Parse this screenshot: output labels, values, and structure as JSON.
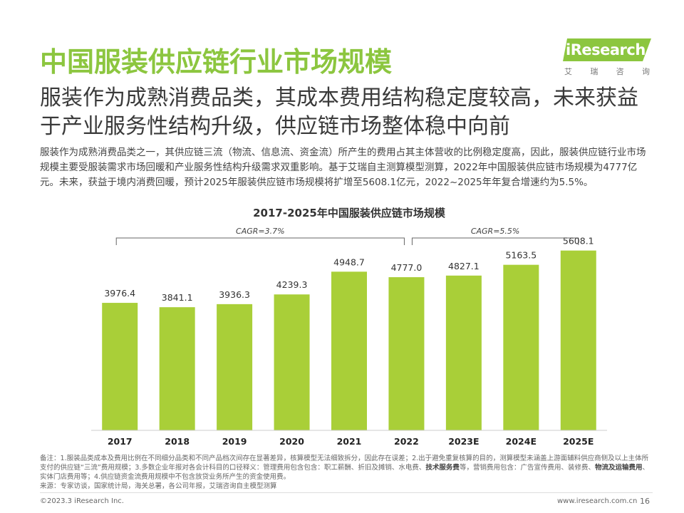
{
  "title": "中国服装供应链行业市场规模",
  "logo": {
    "word": "iResearch",
    "sub": [
      "艾",
      "瑞",
      "咨",
      "询"
    ]
  },
  "subtitle": "服装作为成熟消费品类，其成本费用结构稳定度较高，未来获益于产业服务性结构升级，供应链市场整体稳中向前",
  "description": "服装作为成熟消费品类之一，其供应链三流（物流、信息流、资金流）所产生的费用占其主体营收的比例稳定度高，因此，服装供应链行业市场规模主要受服装需求市场回暖和产业服务性结构升级需求双重影响。基于艾瑞自主测算模型测算，2022年中国服装供应链市场规模为4777亿元。未来，获益于境内消费回暖，预计2025年服装供应链市场规模将扩增至5608.1亿元，2022~2025年年复合增速约为5.5%。",
  "chart_data": {
    "type": "bar",
    "title": "2017-2025年中国服装供应链市场规模",
    "categories": [
      "2017",
      "2018",
      "2019",
      "2020",
      "2021",
      "2022",
      "2023E",
      "2024E",
      "2025E"
    ],
    "values": [
      3976.4,
      3841.1,
      3936.3,
      4239.3,
      4948.7,
      4777.0,
      4827.1,
      5163.5,
      5608.1
    ],
    "value_labels": [
      "3976.4",
      "3841.1",
      "3936.3",
      "4239.3",
      "4948.7",
      "4777.0",
      "4827.1",
      "5163.5",
      "5608.1"
    ],
    "bar_color": "#a9cf38",
    "ylim": [
      0,
      6000
    ],
    "grid": false,
    "annotations": [
      {
        "label": "CAGR=3.7%",
        "from": "2017",
        "to": "2022"
      },
      {
        "label": "CAGR=5.5%",
        "from": "2022",
        "to": "2025E"
      }
    ]
  },
  "notes": {
    "line1": "备注：1.服装品类成本及费用比例在不同细分品类和不同产品档次间存在显著差异，核算模型无法细致拆分，因此存在误差；2.出于避免重复核算的目的，测算模型未涵盖上游面辅料供应商侧及以上主体所支付的供应链“三流”费用规模；3.多数企业年报对各会计科目的口径释义：管理费用包含包含：职工薪酬、折旧及摊销、水电费、",
    "bold1": "技术服务费",
    "line2": "等，营销费用包含：广告宣传费用、装修费、",
    "bold2": "物流及运输费用",
    "line3": "、实体门店费用等；4.供应链资金流费用规模中不包含放贷业务所产生的资金使用费。",
    "source": "来源：专家访谈，国家统计局，海关总署，各公司年报，艾瑞咨询自主模型测算"
  },
  "footer": {
    "copyright": "©2023.3 iResearch Inc.",
    "website": "www.iresearch.com.cn",
    "page": "16"
  },
  "colors": {
    "title": "#8cc63f",
    "bar": "#a9cf38",
    "logo": "#8cc63f"
  }
}
